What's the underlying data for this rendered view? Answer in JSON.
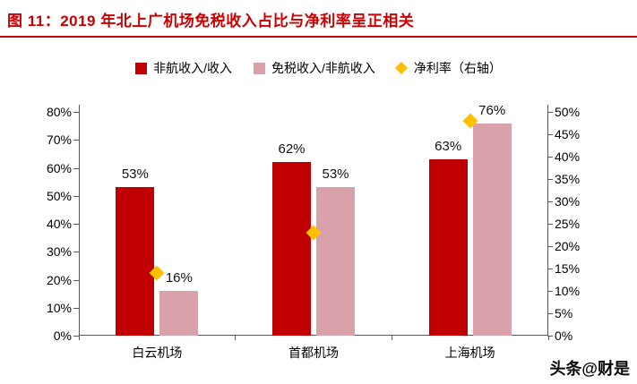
{
  "title": "图 11：2019 年北上广机场免税收入占比与净利率呈正相关",
  "watermark": "头条@财是",
  "colors": {
    "title_red": "#cc0000",
    "bar_red": "#c00000",
    "bar_pink": "#d9a2ab",
    "diamond_yellow": "#ffc000",
    "axis_line": "#595959"
  },
  "chart_data": {
    "type": "bar",
    "categories": [
      "白云机场",
      "首都机场",
      "上海机场"
    ],
    "series": [
      {
        "name": "非航收入/收入",
        "type": "bar",
        "axis": "left",
        "color": "#c00000",
        "values": [
          53,
          62,
          63
        ]
      },
      {
        "name": "免税收入/非航收入",
        "type": "bar",
        "axis": "left",
        "color": "#d9a2ab",
        "values": [
          16,
          53,
          76
        ]
      },
      {
        "name": "净利率（右轴）",
        "type": "scatter",
        "marker": "diamond",
        "axis": "right",
        "color": "#ffc000",
        "values": [
          14,
          23,
          48
        ]
      }
    ],
    "bar_labels": [
      [
        "53%",
        "62%",
        "63%"
      ],
      [
        "16%",
        "53%",
        "76%"
      ]
    ],
    "left_axis": {
      "min": 0,
      "max": 80,
      "step": 10,
      "tick_labels": [
        "0%",
        "10%",
        "20%",
        "30%",
        "40%",
        "50%",
        "60%",
        "70%",
        "80%"
      ]
    },
    "right_axis": {
      "min": 0,
      "max": 50,
      "step": 5,
      "tick_labels": [
        "0%",
        "5%",
        "10%",
        "15%",
        "20%",
        "25%",
        "30%",
        "35%",
        "40%",
        "45%",
        "50%"
      ]
    },
    "grid": false,
    "legend_position": "top"
  }
}
